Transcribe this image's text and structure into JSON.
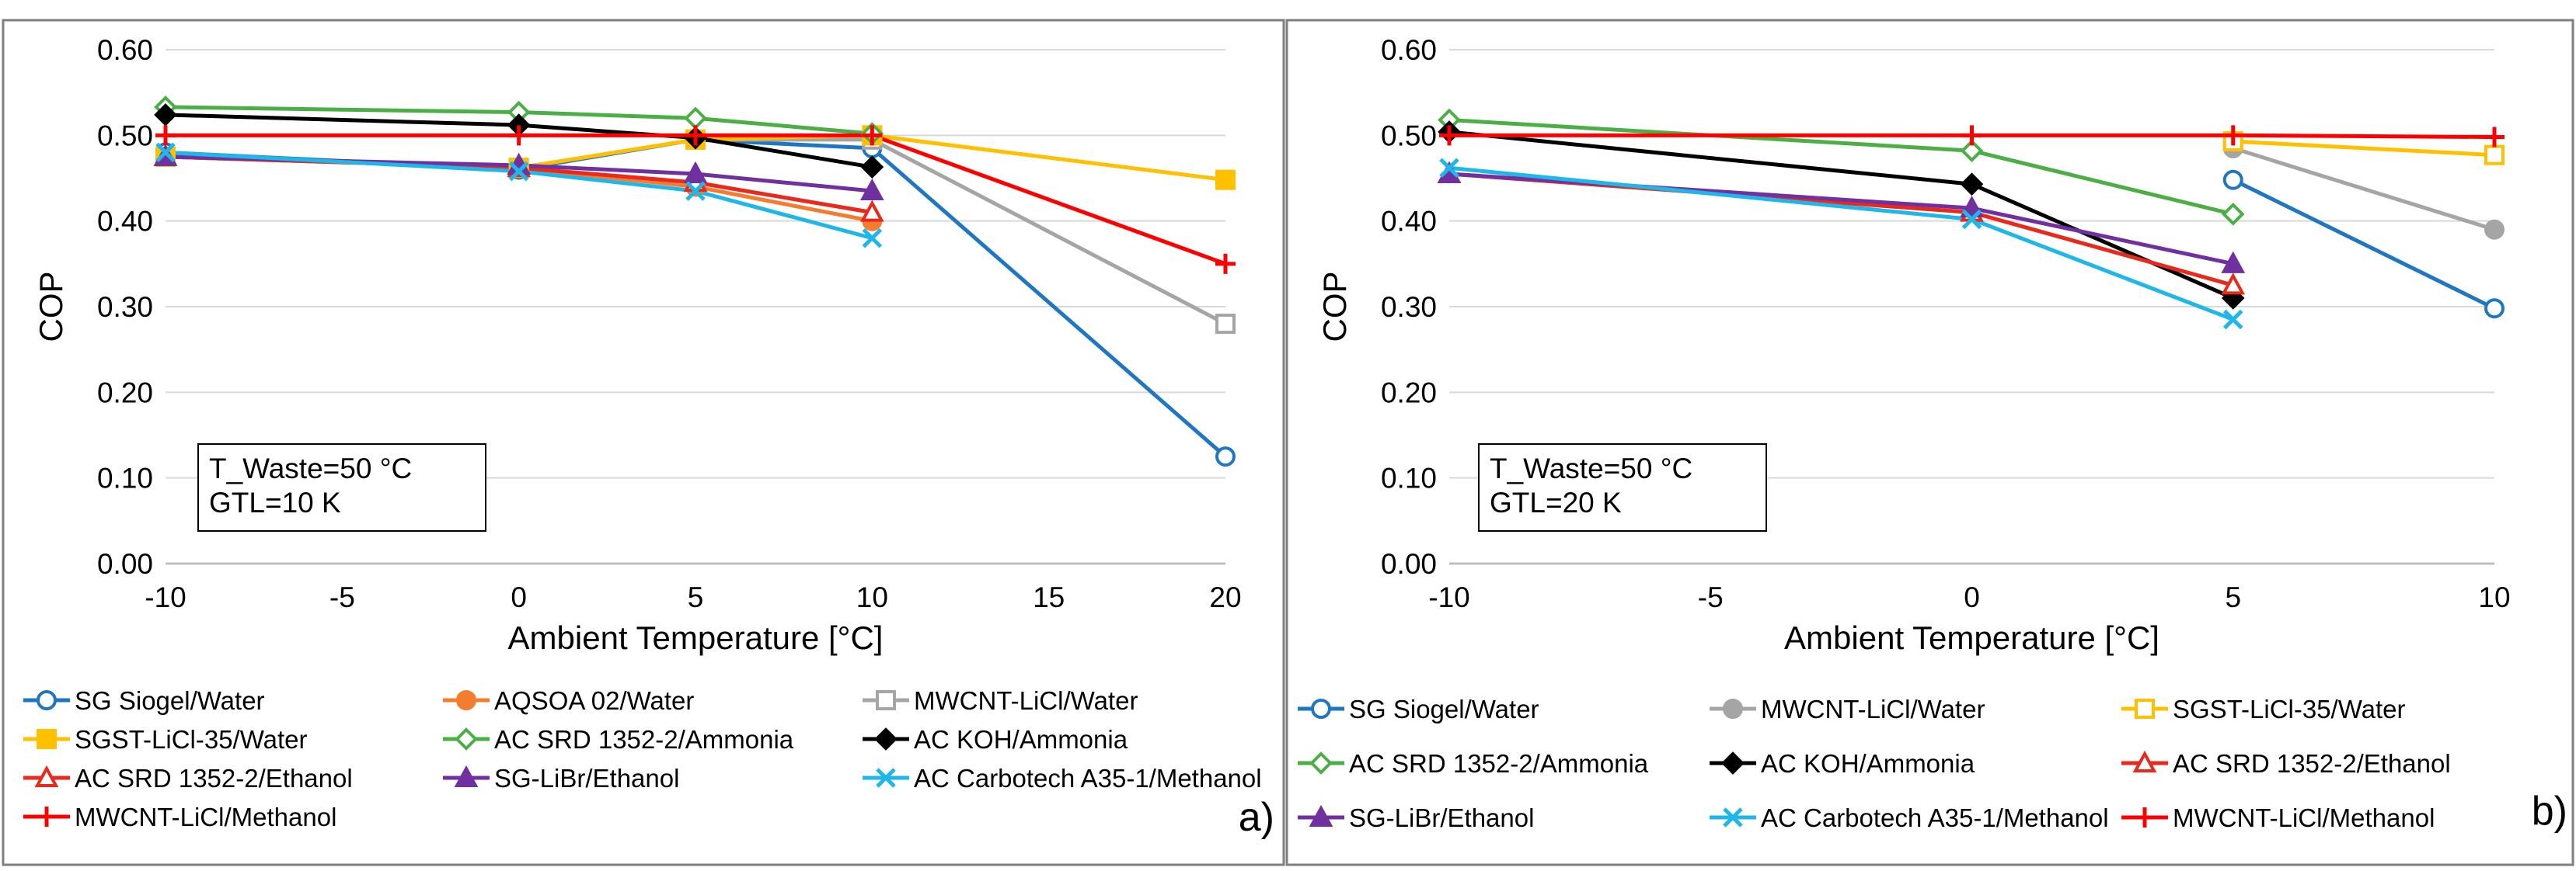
{
  "chart_data": [
    {
      "panel_label": "a)",
      "type": "line",
      "xlabel": "Ambient Temperature [°C]",
      "ylabel": "COP",
      "xlim": [
        -10,
        20
      ],
      "ylim": [
        0,
        0.6
      ],
      "xticks": [
        "-10",
        "-5",
        "0",
        "5",
        "10",
        "15",
        "20"
      ],
      "yticks": [
        "0.00",
        "0.10",
        "0.20",
        "0.30",
        "0.40",
        "0.50",
        "0.60"
      ],
      "grid": "horizontal",
      "legend_position": "bottom",
      "annotation": [
        "T_Waste=50 °C",
        "GTL=10 K"
      ],
      "series": [
        {
          "name": "SG Siogel/Water",
          "color": "#1f77c4",
          "marker": "circle-open",
          "x": [
            -10,
            0,
            5,
            10,
            20
          ],
          "values": [
            0.48,
            0.46,
            0.495,
            0.485,
            0.125
          ]
        },
        {
          "name": "AQSOA 02/Water",
          "color": "#f47c30",
          "marker": "circle",
          "x": [
            -10,
            0,
            5,
            10
          ],
          "values": [
            0.475,
            0.462,
            0.44,
            0.4
          ]
        },
        {
          "name": "MWCNT-LiCl/Water",
          "color": "#a5a5a5",
          "marker": "square-open",
          "x": [
            -10,
            0,
            5,
            10,
            20
          ],
          "values": [
            0.475,
            0.462,
            0.495,
            0.495,
            0.28
          ]
        },
        {
          "name": "SGST-LiCl-35/Water",
          "color": "#ffc000",
          "marker": "square",
          "x": [
            -10,
            0,
            5,
            10,
            20
          ],
          "values": [
            0.475,
            0.462,
            0.495,
            0.5,
            0.448
          ]
        },
        {
          "name": "AC SRD 1352-2/Ammonia",
          "color": "#4caf45",
          "marker": "diamond-open",
          "x": [
            -10,
            0,
            5,
            10
          ],
          "values": [
            0.533,
            0.527,
            0.52,
            0.502
          ]
        },
        {
          "name": "AC KOH/Ammonia",
          "color": "#000000",
          "marker": "diamond",
          "x": [
            -10,
            0,
            5,
            10
          ],
          "values": [
            0.524,
            0.512,
            0.497,
            0.463
          ]
        },
        {
          "name": "AC SRD 1352-2/Ethanol",
          "color": "#e8291c",
          "marker": "triangle-open",
          "x": [
            -10,
            0,
            5,
            10
          ],
          "values": [
            0.475,
            0.462,
            0.445,
            0.41
          ]
        },
        {
          "name": "SG-LiBr/Ethanol",
          "color": "#7030a0",
          "marker": "triangle",
          "x": [
            -10,
            0,
            5,
            10
          ],
          "values": [
            0.475,
            0.465,
            0.455,
            0.435
          ]
        },
        {
          "name": "AC Carbotech A35-1/Methanol",
          "color": "#1fb7ea",
          "marker": "x",
          "x": [
            -10,
            0,
            5,
            10
          ],
          "values": [
            0.48,
            0.458,
            0.435,
            0.38
          ]
        },
        {
          "name": "MWCNT-LiCl/Methanol",
          "color": "#ff0000",
          "marker": "plus",
          "x": [
            -10,
            0,
            5,
            10,
            20
          ],
          "values": [
            0.5,
            0.5,
            0.5,
            0.5,
            0.35
          ]
        }
      ]
    },
    {
      "panel_label": "b)",
      "type": "line",
      "xlabel": "Ambient Temperature [°C]",
      "ylabel": "COP",
      "xlim": [
        -10,
        10
      ],
      "ylim": [
        0,
        0.6
      ],
      "xticks": [
        "-10",
        "-5",
        "0",
        "5",
        "10"
      ],
      "yticks": [
        "0.00",
        "0.10",
        "0.20",
        "0.30",
        "0.40",
        "0.50",
        "0.60"
      ],
      "grid": "horizontal",
      "legend_position": "bottom",
      "annotation": [
        "T_Waste=50 °C",
        "GTL=20 K"
      ],
      "series": [
        {
          "name": "SG Siogel/Water",
          "color": "#1f77c4",
          "marker": "circle-open",
          "x": [
            5,
            10
          ],
          "values": [
            0.448,
            0.298
          ]
        },
        {
          "name": "MWCNT-LiCl/Water",
          "color": "#a5a5a5",
          "marker": "circle",
          "x": [
            5,
            10
          ],
          "values": [
            0.485,
            0.39
          ]
        },
        {
          "name": "SGST-LiCl-35/Water",
          "color": "#ffc000",
          "marker": "square-open",
          "x": [
            5,
            10
          ],
          "values": [
            0.493,
            0.477
          ]
        },
        {
          "name": "AC SRD 1352-2/Ammonia",
          "color": "#4caf45",
          "marker": "diamond-open",
          "x": [
            -10,
            0,
            5
          ],
          "values": [
            0.518,
            0.482,
            0.408
          ]
        },
        {
          "name": "AC KOH/Ammonia",
          "color": "#000000",
          "marker": "diamond",
          "x": [
            -10,
            0,
            5
          ],
          "values": [
            0.504,
            0.443,
            0.31
          ]
        },
        {
          "name": "AC SRD 1352-2/Ethanol",
          "color": "#e8291c",
          "marker": "triangle-open",
          "x": [
            -10,
            0,
            5
          ],
          "values": [
            0.455,
            0.41,
            0.325
          ]
        },
        {
          "name": "SG-LiBr/Ethanol",
          "color": "#7030a0",
          "marker": "triangle",
          "x": [
            -10,
            0,
            5
          ],
          "values": [
            0.455,
            0.415,
            0.35
          ]
        },
        {
          "name": "AC Carbotech A35-1/Methanol",
          "color": "#1fb7ea",
          "marker": "x",
          "x": [
            -10,
            0,
            5
          ],
          "values": [
            0.462,
            0.402,
            0.285
          ]
        },
        {
          "name": "MWCNT-LiCl/Methanol",
          "color": "#ff0000",
          "marker": "plus",
          "x": [
            -10,
            0,
            5,
            10
          ],
          "values": [
            0.5,
            0.5,
            0.5,
            0.498
          ]
        }
      ]
    }
  ]
}
